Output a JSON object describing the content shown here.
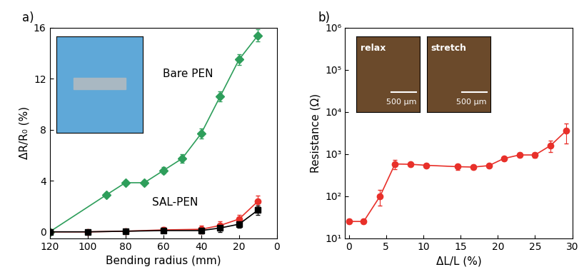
{
  "chart_data": [
    {
      "type": "line",
      "title": "a)",
      "x_label": "Bending radius (mm)",
      "y_label": "ΔR/R₀ (%)",
      "xlim": [
        120,
        0
      ],
      "xticks": [
        120,
        100,
        80,
        60,
        40,
        20,
        0
      ],
      "ylim": [
        -0.5,
        16
      ],
      "yticks": [
        0,
        4,
        8,
        12,
        16
      ],
      "annotations": [
        "Bare PEN",
        "SAL-PEN"
      ],
      "series": [
        {
          "color": "#2e9e5b",
          "marker": "D",
          "line_style": "solid",
          "x": [
            120,
            90,
            80,
            70,
            60,
            50,
            40,
            30,
            20,
            10
          ],
          "values": [
            0,
            2.9,
            3.85,
            3.85,
            4.8,
            5.75,
            7.7,
            10.6,
            13.5,
            15.4
          ],
          "errors": [
            0.1,
            0.15,
            0.15,
            0.15,
            0.25,
            0.35,
            0.4,
            0.4,
            0.4,
            0.45
          ]
        },
        {
          "color": "#e8302a",
          "marker": "o",
          "line_style": "solid",
          "x": [
            120,
            100,
            80,
            60,
            40,
            30,
            20,
            10
          ],
          "values": [
            0,
            0,
            0.05,
            0.15,
            0.2,
            0.5,
            1.0,
            2.4
          ],
          "errors": [
            0.05,
            0.1,
            0.1,
            0.2,
            0.3,
            0.3,
            0.35,
            0.45
          ]
        },
        {
          "color": "#000000",
          "marker": "s",
          "line_style": "solid",
          "x": [
            120,
            100,
            80,
            60,
            40,
            30,
            20,
            10
          ],
          "values": [
            0,
            0,
            0.05,
            0.1,
            0.1,
            0.3,
            0.6,
            1.7
          ],
          "errors": [
            0.05,
            0.1,
            0.1,
            0.15,
            0.2,
            0.3,
            0.3,
            0.35
          ]
        }
      ]
    },
    {
      "type": "line",
      "title": "b)",
      "log": "y",
      "x_label": "ΔL/L (%)",
      "y_label": "Resistance (Ω)",
      "xlim": [
        -0.5,
        30
      ],
      "xticks": [
        0,
        5,
        10,
        15,
        20,
        25,
        30
      ],
      "ylim": [
        10,
        1000000
      ],
      "yticks": [
        {
          "value": 10,
          "label": "10¹"
        },
        {
          "value": 100,
          "label": "10²"
        },
        {
          "value": 1000,
          "label": "10³"
        },
        {
          "value": 10000,
          "label": "10⁴"
        },
        {
          "value": 100000,
          "label": "10⁵"
        },
        {
          "value": 1000000,
          "label": "10⁶"
        }
      ],
      "insets": [
        {
          "label": "relax",
          "scale_bar": "500 µm"
        },
        {
          "label": "stretch",
          "scale_bar": "500 µm"
        }
      ],
      "series": [
        {
          "color": "#e8302a",
          "marker": "o",
          "line_style": "solid",
          "x": [
            0,
            2,
            4.2,
            6.2,
            8.3,
            10.4,
            14.6,
            16.7,
            18.8,
            20.8,
            22.9,
            25,
            27.1,
            29.2
          ],
          "values": [
            25,
            25,
            100,
            580,
            570,
            540,
            500,
            490,
            530,
            780,
            950,
            950,
            1600,
            3600
          ],
          "errors": [
            3,
            3,
            40,
            150,
            60,
            50,
            80,
            60,
            50,
            80,
            100,
            120,
            500,
            1800
          ]
        }
      ]
    }
  ]
}
